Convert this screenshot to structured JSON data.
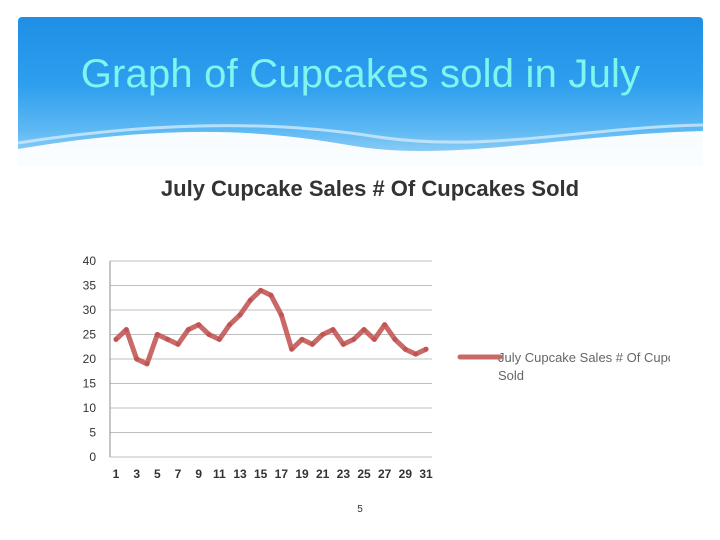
{
  "slide": {
    "title": "Graph of Cupcakes sold in July",
    "page_number": "5"
  },
  "colors": {
    "banner": "#2e9eee",
    "title_text": "#7ff5ee",
    "series_line": "#c0504d",
    "grid": "#bfbfbf"
  },
  "chart_data": {
    "type": "line",
    "title": "July Cupcake Sales # Of Cupcakes Sold",
    "xlabel": "",
    "ylabel": "",
    "ylim": [
      0,
      40
    ],
    "yticks": [
      0,
      5,
      10,
      15,
      20,
      25,
      30,
      35,
      40
    ],
    "grid": true,
    "legend_position": "right",
    "x": [
      1,
      2,
      3,
      4,
      5,
      6,
      7,
      8,
      9,
      10,
      11,
      12,
      13,
      14,
      15,
      16,
      17,
      18,
      19,
      20,
      21,
      22,
      23,
      24,
      25,
      26,
      27,
      28,
      29,
      30,
      31
    ],
    "xtick_labels": [
      "1",
      "3",
      "5",
      "7",
      "9",
      "11",
      "13",
      "15",
      "17",
      "19",
      "21",
      "23",
      "25",
      "27",
      "29",
      "31"
    ],
    "series": [
      {
        "name": "July Cupcake Sales # Of Cupcakes Sold",
        "values": [
          24,
          26,
          20,
          19,
          25,
          24,
          23,
          26,
          27,
          25,
          24,
          27,
          29,
          32,
          34,
          33,
          29,
          22,
          24,
          23,
          25,
          26,
          23,
          24,
          26,
          24,
          27,
          24,
          22,
          21,
          22
        ]
      }
    ]
  }
}
